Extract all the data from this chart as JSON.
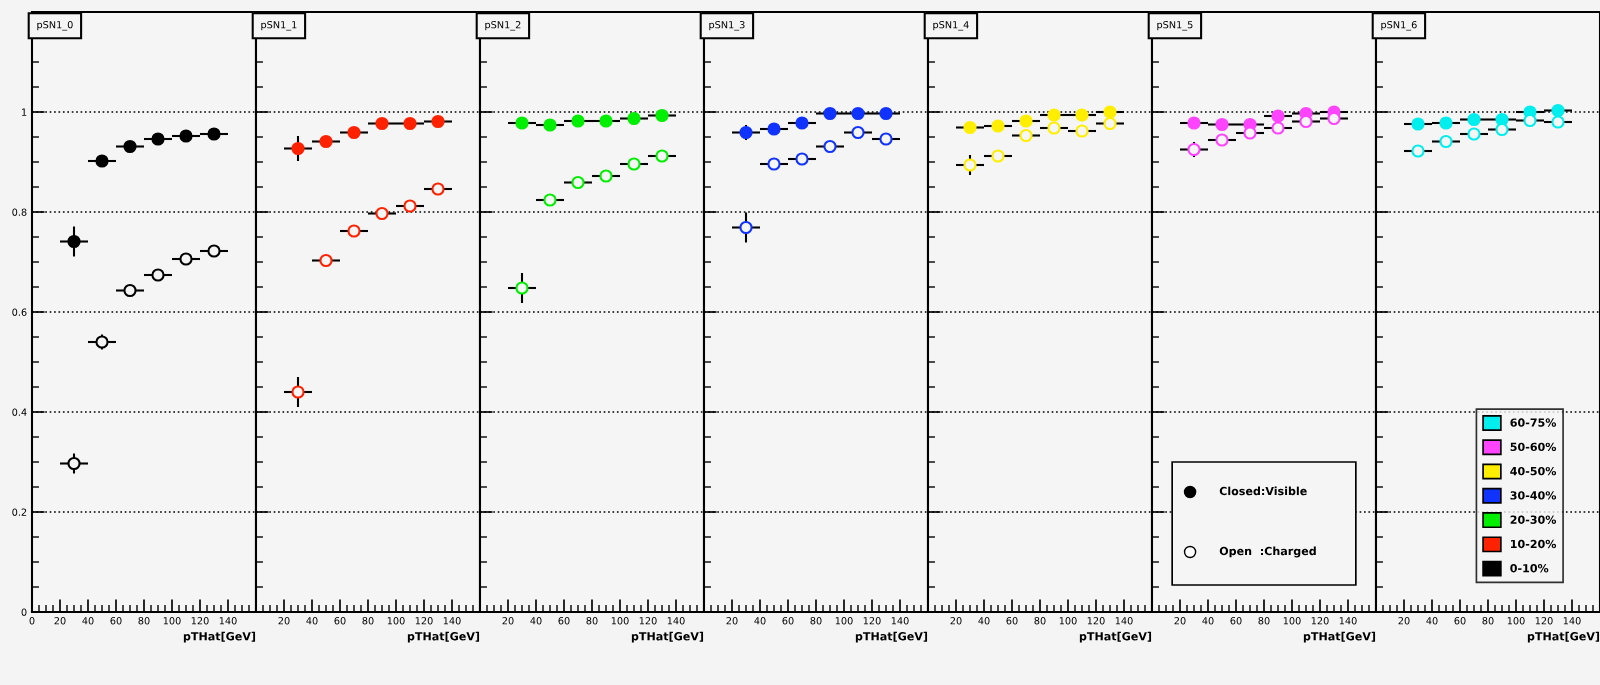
{
  "chart_data": [
    {
      "type": "scatter",
      "title": "pSN1_0",
      "xlabel": "pTHat[GeV]",
      "x": [
        30,
        50,
        70,
        90,
        110,
        130
      ],
      "xlim": [
        0,
        160
      ],
      "xticks": [
        0,
        20,
        40,
        60,
        80,
        100,
        120,
        140
      ],
      "ylim": [
        0,
        1.2
      ],
      "yticks": [
        0,
        0.2,
        0.4,
        0.6,
        0.8,
        1
      ],
      "grid": "y",
      "legend": "bottom right",
      "series": [
        {
          "name": "0-10%",
          "color": "#000000",
          "marker": "circle",
          "values": [
            0.741,
            0.902,
            0.931,
            0.946,
            0.952,
            0.956
          ],
          "errors": [
            0.03,
            null,
            null,
            null,
            null,
            null
          ],
          "xerrors": [
            10,
            10,
            10,
            10,
            10,
            10
          ]
        },
        {
          "color": "#000000",
          "marker": "circle-open",
          "values": [
            0.297,
            0.54,
            0.643,
            0.674,
            0.706,
            0.722
          ],
          "errors": [
            0.02,
            0.015,
            null,
            null,
            null,
            null
          ],
          "xerrors": [
            10,
            10,
            10,
            10,
            10,
            10
          ]
        }
      ]
    },
    {
      "type": "scatter",
      "title": "pSN1_1",
      "xlabel": "pTHat[GeV]",
      "x": [
        30,
        50,
        70,
        90,
        110,
        130
      ],
      "xlim": [
        0,
        160
      ],
      "xticks": [
        20,
        40,
        60,
        80,
        100,
        120,
        140
      ],
      "ylim": [
        0,
        1.2
      ],
      "yticks": [
        0,
        0.2,
        0.4,
        0.6,
        0.8,
        1
      ],
      "tick_labels": "x",
      "grid": "y",
      "legend": "bottom right",
      "series": [
        {
          "name": "10-20%",
          "color": "#ff2200",
          "marker": "circle",
          "values": [
            0.927,
            0.941,
            0.959,
            0.977,
            0.977,
            0.981
          ],
          "errors": [
            0.025,
            null,
            null,
            null,
            null,
            null
          ],
          "xerrors": [
            10,
            10,
            10,
            10,
            10,
            10
          ]
        },
        {
          "color": "#ff2200",
          "marker": "circle-open",
          "values": [
            0.44,
            0.703,
            0.762,
            0.797,
            0.812,
            0.846
          ],
          "errors": [
            0.03,
            null,
            null,
            null,
            null,
            null
          ],
          "xerrors": [
            10,
            10,
            10,
            10,
            10,
            10
          ]
        }
      ]
    },
    {
      "type": "scatter",
      "title": "pSN1_2",
      "xlabel": "pTHat[GeV]",
      "x": [
        30,
        50,
        70,
        90,
        110,
        130
      ],
      "xlim": [
        0,
        160
      ],
      "xticks": [
        20,
        40,
        60,
        80,
        100,
        120,
        140
      ],
      "ylim": [
        0,
        1.2
      ],
      "yticks": [
        0,
        0.2,
        0.4,
        0.6,
        0.8,
        1
      ],
      "tick_labels": "x",
      "grid": "y",
      "legend": "bottom right",
      "series": [
        {
          "name": "20-30%",
          "color": "#00ee00",
          "marker": "circle",
          "values": [
            0.978,
            0.974,
            0.982,
            0.982,
            0.987,
            0.993
          ],
          "xerrors": [
            10,
            10,
            10,
            10,
            10,
            10
          ]
        },
        {
          "color": "#00ee00",
          "marker": "circle-open",
          "values": [
            0.648,
            0.824,
            0.859,
            0.872,
            0.896,
            0.912
          ],
          "errors": [
            0.03,
            null,
            null,
            null,
            null,
            null
          ],
          "xerrors": [
            10,
            10,
            10,
            10,
            10,
            10
          ]
        }
      ]
    },
    {
      "type": "scatter",
      "title": "pSN1_3",
      "xlabel": "pTHat[GeV]",
      "x": [
        30,
        50,
        70,
        90,
        110,
        130
      ],
      "xlim": [
        0,
        160
      ],
      "xticks": [
        20,
        40,
        60,
        80,
        100,
        120,
        140
      ],
      "ylim": [
        0,
        1.2
      ],
      "yticks": [
        0,
        0.2,
        0.4,
        0.6,
        0.8,
        1
      ],
      "tick_labels": "x",
      "grid": "y",
      "legend": "bottom right",
      "series": [
        {
          "name": "30-40%",
          "color": "#1133ff",
          "marker": "circle",
          "values": [
            0.959,
            0.966,
            0.978,
            0.997,
            0.997,
            0.997
          ],
          "errors": [
            0.015,
            null,
            null,
            null,
            null,
            null
          ],
          "xerrors": [
            10,
            10,
            10,
            10,
            10,
            10
          ]
        },
        {
          "color": "#1133ff",
          "marker": "circle-open",
          "values": [
            0.769,
            0.896,
            0.906,
            0.931,
            0.959,
            0.946
          ],
          "errors": [
            0.03,
            null,
            null,
            null,
            null,
            null
          ],
          "xerrors": [
            10,
            10,
            10,
            10,
            10,
            10
          ]
        }
      ]
    },
    {
      "type": "scatter",
      "title": "pSN1_4",
      "xlabel": "pTHat[GeV]",
      "x": [
        30,
        50,
        70,
        90,
        110,
        130
      ],
      "xlim": [
        0,
        160
      ],
      "xticks": [
        20,
        40,
        60,
        80,
        100,
        120,
        140
      ],
      "ylim": [
        0,
        1.2
      ],
      "yticks": [
        0,
        0.2,
        0.4,
        0.6,
        0.8,
        1
      ],
      "tick_labels": "x",
      "grid": "y",
      "legend": "bottom right",
      "series": [
        {
          "name": "40-50%",
          "color": "#ffee00",
          "marker": "circle",
          "values": [
            0.969,
            0.972,
            0.982,
            0.994,
            0.994,
            1.0
          ],
          "xerrors": [
            10,
            10,
            10,
            10,
            10,
            10
          ]
        },
        {
          "color": "#ffee00",
          "marker": "circle-open",
          "values": [
            0.894,
            0.912,
            0.953,
            0.968,
            0.962,
            0.977
          ],
          "errors": [
            0.02,
            null,
            null,
            null,
            null,
            null
          ],
          "xerrors": [
            10,
            10,
            10,
            10,
            10,
            10
          ]
        }
      ]
    },
    {
      "type": "scatter",
      "title": "pSN1_5",
      "xlabel": "pTHat[GeV]",
      "x": [
        30,
        50,
        70,
        90,
        110,
        130
      ],
      "xlim": [
        0,
        160
      ],
      "xticks": [
        20,
        40,
        60,
        80,
        100,
        120,
        140
      ],
      "ylim": [
        0,
        1.2
      ],
      "yticks": [
        0,
        0.2,
        0.4,
        0.6,
        0.8,
        1
      ],
      "tick_labels": "x",
      "grid": "y",
      "legend": "bottom right",
      "annotations": [
        "Closed:Visible",
        "Open  :Charged"
      ],
      "series": [
        {
          "name": "50-60%",
          "color": "#ff44ff",
          "marker": "circle",
          "values": [
            0.978,
            0.975,
            0.975,
            0.992,
            0.997,
            1.0
          ],
          "xerrors": [
            10,
            10,
            10,
            10,
            10,
            10
          ]
        },
        {
          "color": "#ff44ff",
          "marker": "circle-open",
          "values": [
            0.925,
            0.944,
            0.958,
            0.968,
            0.981,
            0.987
          ],
          "errors": [
            0.015,
            null,
            null,
            null,
            null,
            null
          ],
          "xerrors": [
            10,
            10,
            10,
            10,
            10,
            10
          ]
        }
      ]
    },
    {
      "type": "scatter",
      "title": "pSN1_6",
      "xlabel": "pTHat[GeV]",
      "x": [
        30,
        50,
        70,
        90,
        110,
        130
      ],
      "xlim": [
        0,
        160
      ],
      "xticks": [
        20,
        40,
        60,
        80,
        100,
        120,
        140
      ],
      "ylim": [
        0,
        1.2
      ],
      "yticks": [
        0,
        0.2,
        0.4,
        0.6,
        0.8,
        1
      ],
      "tick_labels": "x",
      "grid": "y",
      "legend": "bottom right",
      "series": [
        {
          "name": "60-75%",
          "color": "#00eeee",
          "marker": "circle",
          "values": [
            0.976,
            0.978,
            0.985,
            0.985,
            1.0,
            1.003
          ],
          "xerrors": [
            10,
            10,
            10,
            10,
            10,
            10
          ]
        },
        {
          "color": "#00eeee",
          "marker": "circle-open",
          "values": [
            0.922,
            0.941,
            0.956,
            0.965,
            0.983,
            0.98
          ],
          "xerrors": [
            10,
            10,
            10,
            10,
            10,
            10
          ]
        }
      ]
    }
  ]
}
